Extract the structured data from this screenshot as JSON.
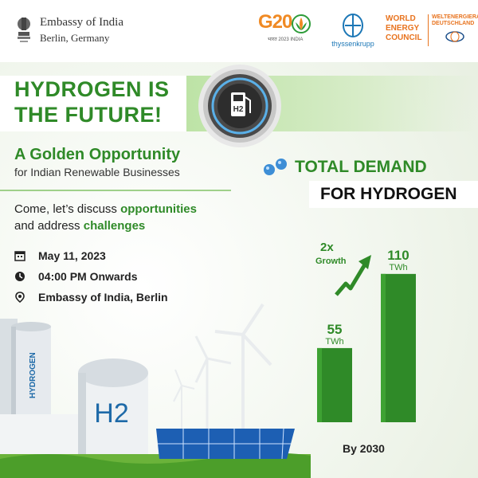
{
  "header": {
    "embassy_name": "Embassy of India",
    "embassy_location": "Berlin, Germany",
    "g20_logo": "G20",
    "g20_sub": "भारत 2023 INDIA",
    "partner1": "thyssenkrupp",
    "partner2_lines": [
      "WORLD",
      "ENERGY",
      "COUNCIL"
    ],
    "partner2_side": [
      "WELTENERGIERAT",
      "DEUTSCHLAND"
    ]
  },
  "title": {
    "line1": "HYDROGEN IS",
    "line2": "THE FUTURE!"
  },
  "badge_text": "H2",
  "subtitle": {
    "line1": "A Golden Opportunity",
    "line2": "for Indian Renewable Businesses"
  },
  "discussion": {
    "prefix1": "Come, let’s discuss ",
    "highlight1": "opportunities",
    "prefix2": "and address ",
    "highlight2": "challenges"
  },
  "event": {
    "date": "May 11, 2023",
    "time": "04:00 PM Onwards",
    "venue": "Embassy of India, Berlin"
  },
  "illustration": {
    "tank_label": "HYDROGEN",
    "sphere_label": "H2"
  },
  "chart_data": {
    "type": "bar",
    "title_line1": "TOTAL DEMAND",
    "title_line2": "FOR HYDROGEN",
    "categories": [
      "",
      ""
    ],
    "values": [
      55,
      110
    ],
    "unit": "TWh",
    "growth_label": "2x",
    "growth_sub": "Growth",
    "xlabel": "By 2030",
    "ylim": [
      0,
      130
    ],
    "colors": {
      "bar": "#2f8a28"
    }
  },
  "colors": {
    "accent_green": "#2f8a28",
    "light_green": "#bde3a6",
    "orange": "#f08a24",
    "blue": "#1c77b6"
  },
  "icons": [
    "calendar-icon",
    "clock-icon",
    "location-pin-icon",
    "hydrogen-molecule-icon",
    "growth-arrow-icon",
    "emblem-icon"
  ]
}
